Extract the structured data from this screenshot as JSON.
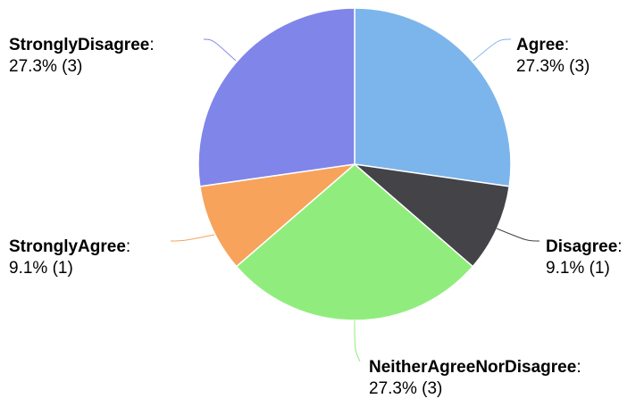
{
  "chart_data": {
    "type": "pie",
    "title": "",
    "slices": [
      {
        "label": "Agree",
        "value": 3,
        "percent": "27.3%",
        "value_text": "(3)",
        "color": "#7cb5ec"
      },
      {
        "label": "Disagree",
        "value": 1,
        "percent": "9.1%",
        "value_text": "(1)",
        "color": "#434348"
      },
      {
        "label": "NeitherAgreeNorDisagree",
        "value": 3,
        "percent": "27.3%",
        "value_text": "(3)",
        "color": "#90ed7d"
      },
      {
        "label": "StronglyAgree",
        "value": 1,
        "percent": "9.1%",
        "value_text": "(1)",
        "color": "#f7a35c"
      },
      {
        "label": "StronglyDisagree",
        "value": 3,
        "percent": "27.3%",
        "value_text": "(3)",
        "color": "#8085e9"
      }
    ],
    "start_angle": "12 o'clock",
    "direction": "clockwise",
    "legend": "none",
    "data_labels": "outside with connector lines"
  }
}
